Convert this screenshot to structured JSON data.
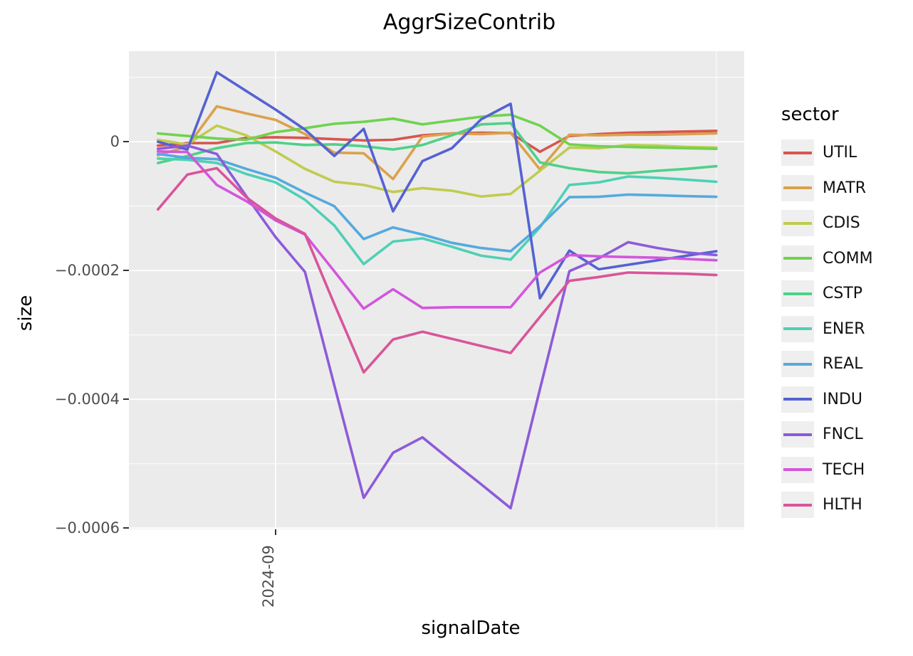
{
  "figure": {
    "title": "AggrSizeContrib",
    "x_axis_title": "signalDate",
    "y_axis_title": "size",
    "background_color": "#ffffff"
  },
  "panel": {
    "background_color": "#ebebeb",
    "grid_color": "#ffffff",
    "tick_mark_color": "#333333",
    "tick_label_color": "#4d4d4d"
  },
  "legend": {
    "title": "sector"
  },
  "chart_data": {
    "type": "line",
    "title": "AggrSizeContrib",
    "xlabel": "signalDate",
    "ylabel": "size",
    "legend_title": "sector",
    "legend_position": "right",
    "grid": true,
    "x_index": [
      0,
      1,
      2,
      3,
      4,
      5,
      6,
      7,
      8,
      9,
      10,
      11,
      12,
      13,
      14,
      15,
      16,
      17,
      18,
      19
    ],
    "x_ticks": [
      {
        "index": 4,
        "label": "2024-09"
      }
    ],
    "x_minor_indices": [
      19
    ],
    "xlim": [
      -0.99,
      19.95
    ],
    "ylim": [
      -0.0006019,
      0.0001406
    ],
    "y_ticks": [
      {
        "value": 0,
        "label": "0"
      },
      {
        "value": -0.0002,
        "label": "−0.0002"
      },
      {
        "value": -0.0004,
        "label": "−0.0004"
      },
      {
        "value": -0.0006,
        "label": "−0.0006"
      }
    ],
    "y_minor_values": [
      0.0001,
      -0.0001,
      -0.0003,
      -0.0005
    ],
    "series": [
      {
        "name": "UTIL",
        "color": "#d6564f",
        "values": [
          -6e-06,
          -2e-06,
          -2e-06,
          6e-06,
          7e-06,
          6e-06,
          4e-06,
          2e-06,
          3e-06,
          1e-05,
          1.3e-05,
          1.4e-05,
          1.35e-05,
          -1.55e-05,
          9e-06,
          1.2e-05,
          1.4e-05,
          1.5e-05,
          1.6e-05,
          1.7e-05
        ]
      },
      {
        "name": "MATR",
        "color": "#dba14d",
        "values": [
          -2.1e-05,
          -7e-06,
          5.5e-05,
          4.4e-05,
          3.4e-05,
          1.2e-05,
          -1.7e-05,
          -1.8e-05,
          -5.8e-05,
          8e-06,
          1.3e-05,
          1.2e-05,
          1.4e-05,
          -4.3e-05,
          1.1e-05,
          1e-05,
          1.1e-05,
          1.1e-05,
          1.2e-05,
          1.3e-05
        ]
      },
      {
        "name": "CDIS",
        "color": "#bfcc4f",
        "values": [
          3e-06,
          -4e-06,
          2.5e-05,
          1e-05,
          -1.5e-05,
          -4.2e-05,
          -6.2e-05,
          -6.7e-05,
          -7.8e-05,
          -7.2e-05,
          -7.6e-05,
          -8.5e-05,
          -8.1e-05,
          -4.5e-05,
          -9e-06,
          -1e-05,
          -5e-06,
          -6e-06,
          -8e-06,
          -9e-06
        ]
      },
      {
        "name": "COMM",
        "color": "#6fd34f",
        "values": [
          1.3e-05,
          9e-06,
          5e-06,
          3e-06,
          1.5e-05,
          2.1e-05,
          2.8e-05,
          3.1e-05,
          3.6e-05,
          2.7e-05,
          3.3e-05,
          3.9e-05,
          4.2e-05,
          2.5e-05,
          -4e-06,
          -7e-06,
          -8e-06,
          -9e-06,
          -1e-05,
          -1.1e-05
        ]
      },
      {
        "name": "CSTP",
        "color": "#4fd188",
        "values": [
          -3.3e-05,
          -2.2e-05,
          -1e-05,
          -2e-06,
          -1e-06,
          -5e-06,
          -4e-06,
          -7e-06,
          -1.2e-05,
          -5e-06,
          1e-05,
          2.7e-05,
          2.9e-05,
          -3.2e-05,
          -4.1e-05,
          -4.7e-05,
          -4.9e-05,
          -4.5e-05,
          -4.2e-05,
          -3.8e-05
        ]
      },
      {
        "name": "ENER",
        "color": "#4fd0b5",
        "values": [
          -2.6e-05,
          -2.8e-05,
          -3.3e-05,
          -5e-05,
          -6.3e-05,
          -9e-05,
          -0.00013,
          -0.00019,
          -0.000155,
          -0.00015,
          -0.000163,
          -0.000177,
          -0.000183,
          -0.000133,
          -6.7e-05,
          -6.3e-05,
          -5.4e-05,
          -5.6e-05,
          -5.9e-05,
          -6.2e-05
        ]
      },
      {
        "name": "REAL",
        "color": "#55aadd",
        "values": [
          -1.9e-05,
          -2.5e-05,
          -2.7e-05,
          -4.2e-05,
          -5.6e-05,
          -7.9e-05,
          -0.0001,
          -0.000151,
          -0.000133,
          -0.000144,
          -0.000157,
          -0.000165,
          -0.00017,
          -0.000131,
          -8.6e-05,
          -8.55e-05,
          -8.2e-05,
          -8.3e-05,
          -8.45e-05,
          -8.55e-05
        ]
      },
      {
        "name": "INDU",
        "color": "#5562d2",
        "values": [
          0,
          -1.2e-05,
          0.000108,
          7.9e-05,
          5e-05,
          1.9e-05,
          -2.2e-05,
          2e-05,
          -0.000108,
          -3e-05,
          -1e-05,
          3.5e-05,
          5.9e-05,
          -0.000243,
          -0.000169,
          -0.000198,
          -0.000191,
          -0.000184,
          -0.000177,
          -0.00017
        ]
      },
      {
        "name": "FNCL",
        "color": "#8d5bd9",
        "values": [
          -1.1e-05,
          -6e-06,
          -1.9e-05,
          -8.4e-05,
          -0.000148,
          -0.000202,
          -0.000378,
          -0.000553,
          -0.000483,
          -0.000459,
          -0.000496,
          -0.000532,
          -0.000569,
          -0.000384,
          -0.000201,
          -0.000181,
          -0.000156,
          -0.000165,
          -0.000172,
          -0.000176
        ]
      },
      {
        "name": "TECH",
        "color": "#d256dc",
        "values": [
          -1.5e-05,
          -1.6e-05,
          -6.7e-05,
          -9.2e-05,
          -0.000122,
          -0.000144,
          -0.000201,
          -0.000259,
          -0.000229,
          -0.000258,
          -0.000257,
          -0.000257,
          -0.000257,
          -0.000203,
          -0.000176,
          -0.000178,
          -0.000179,
          -0.00018,
          -0.000182,
          -0.000184
        ]
      },
      {
        "name": "HLTH",
        "color": "#d9559a",
        "values": [
          -0.000105,
          -5.1e-05,
          -4.1e-05,
          -8.6e-05,
          -0.000119,
          -0.000143,
          -0.000252,
          -0.000358,
          -0.000307,
          -0.000295,
          -0.000306,
          -0.000317,
          -0.000328,
          -0.000272,
          -0.000216,
          -0.00021,
          -0.000203,
          -0.000204,
          -0.000205,
          -0.000207
        ]
      }
    ]
  }
}
